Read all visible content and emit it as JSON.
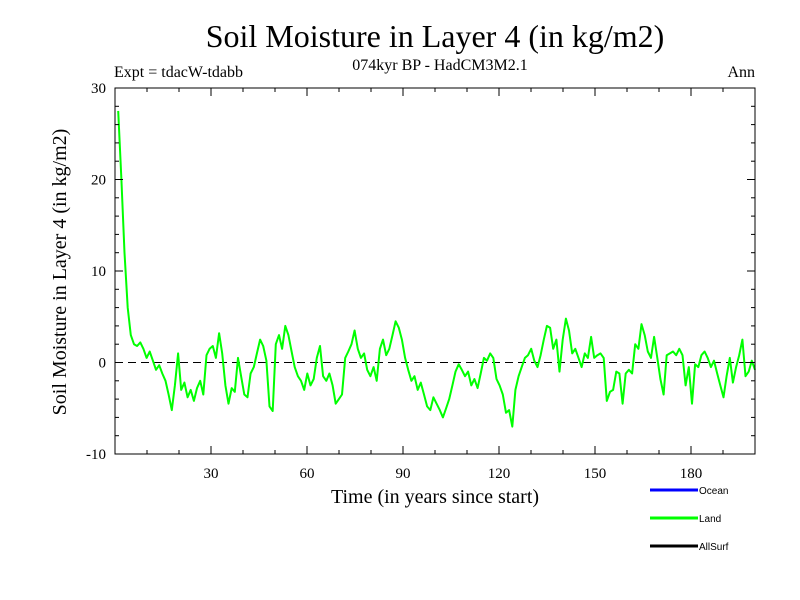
{
  "chart_data": {
    "type": "line",
    "title": "Soil Moisture in Layer 4 (in kg/m2)",
    "subtitle": "074kyr BP - HadCM3M2.1",
    "experiment": "Expt = tdacW-tdabb",
    "season": "Ann",
    "xlabel": "Time (in years since start)",
    "ylabel": "Soil Moisture in Layer 4 (in kg/m2)",
    "xlim": [
      0,
      200
    ],
    "ylim": [
      -10,
      30
    ],
    "x_ticks": [
      30,
      60,
      90,
      120,
      150,
      180
    ],
    "y_ticks": [
      -10,
      0,
      10,
      20,
      30
    ],
    "zero_line": "dashed",
    "legend_position": "bottom-right",
    "series": [
      {
        "name": "Ocean",
        "color": "#0000ff",
        "values": []
      },
      {
        "name": "Land",
        "color": "#00ff00",
        "values": [
          27.5,
          20.0,
          12.0,
          6.0,
          3.0,
          2.0,
          1.8,
          2.2,
          1.5,
          0.5,
          1.2,
          0.2,
          -0.8,
          -0.3,
          -1.2,
          -2.0,
          -3.5,
          -5.2,
          -2.5,
          1.0,
          -3.0,
          -2.2,
          -3.8,
          -3.0,
          -4.2,
          -2.8,
          -2.0,
          -3.5,
          0.8,
          1.5,
          1.8,
          0.5,
          3.2,
          1.0,
          -2.5,
          -4.5,
          -2.8,
          -3.2,
          0.5,
          -1.5,
          -3.5,
          -3.8,
          -1.2,
          -0.5,
          1.0,
          2.5,
          1.8,
          0.2,
          -4.8,
          -5.3,
          2.0,
          3.0,
          1.5,
          4.0,
          3.0,
          1.2,
          -0.5,
          -1.5,
          -2.0,
          -3.0,
          -1.2,
          -2.5,
          -1.8,
          0.5,
          1.8,
          -1.5,
          -2.0,
          -1.2,
          -2.5,
          -4.5,
          -4.0,
          -3.5,
          0.5,
          1.2,
          2.0,
          3.5,
          1.5,
          0.5,
          1.0,
          -0.8,
          -1.5,
          -0.5,
          -2.0,
          1.5,
          2.5,
          0.8,
          1.5,
          3.0,
          4.5,
          3.8,
          2.5,
          0.5,
          -0.8,
          -2.0,
          -1.5,
          -3.0,
          -2.2,
          -3.5,
          -4.8,
          -5.2,
          -3.8,
          -4.5,
          -5.2,
          -6.0,
          -5.0,
          -4.0,
          -2.5,
          -1.0,
          -0.2,
          -0.8,
          -1.5,
          -1.0,
          -2.5,
          -1.8,
          -2.8,
          -1.2,
          0.5,
          0.2,
          1.0,
          0.5,
          -1.8,
          -2.5,
          -3.5,
          -5.5,
          -5.2,
          -7.0,
          -3.0,
          -1.5,
          -0.5,
          0.5,
          0.8,
          1.5,
          0.2,
          -0.5,
          0.8,
          2.5,
          4.0,
          3.8,
          1.5,
          2.5,
          -1.0,
          2.5,
          4.8,
          3.5,
          1.0,
          1.5,
          0.5,
          -0.5,
          1.0,
          0.5,
          2.8,
          0.5,
          0.8,
          1.0,
          0.5,
          -4.2,
          -3.2,
          -3.0,
          -1.0,
          -1.2,
          -4.5,
          -1.2,
          -0.8,
          -1.2,
          2.0,
          1.5,
          4.2,
          3.0,
          1.2,
          0.5,
          2.8,
          0.5,
          -1.8,
          -3.5,
          0.8,
          1.0,
          1.2,
          0.8,
          1.5,
          0.8,
          -2.5,
          -0.5,
          -4.5,
          -0.2,
          -0.5,
          0.8,
          1.2,
          0.5,
          -0.5,
          0.2,
          -1.2,
          -2.5,
          -3.8,
          -1.5,
          0.5,
          -2.2,
          -0.5,
          0.8,
          2.5,
          -1.5,
          -1.0,
          0.2,
          -0.8
        ]
      },
      {
        "name": "AllSurf",
        "color": "#000000",
        "values": []
      }
    ]
  }
}
